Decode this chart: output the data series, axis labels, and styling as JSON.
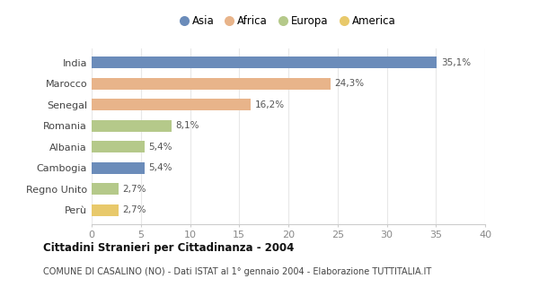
{
  "categories": [
    "India",
    "Marocco",
    "Senegal",
    "Romania",
    "Albania",
    "Cambogia",
    "Regno Unito",
    "Perù"
  ],
  "values": [
    35.1,
    24.3,
    16.2,
    8.1,
    5.4,
    5.4,
    2.7,
    2.7
  ],
  "labels": [
    "35,1%",
    "24,3%",
    "16,2%",
    "8,1%",
    "5,4%",
    "5,4%",
    "2,7%",
    "2,7%"
  ],
  "colors": [
    "#6b8cba",
    "#e8b48a",
    "#e8b48a",
    "#b5c98a",
    "#b5c98a",
    "#6b8cba",
    "#b5c98a",
    "#e8c96b"
  ],
  "legend_labels": [
    "Asia",
    "Africa",
    "Europa",
    "America"
  ],
  "legend_colors": [
    "#6b8cba",
    "#e8b48a",
    "#b5c98a",
    "#e8c96b"
  ],
  "title": "Cittadini Stranieri per Cittadinanza - 2004",
  "subtitle": "COMUNE DI CASALINO (NO) - Dati ISTAT al 1° gennaio 2004 - Elaborazione TUTTITALIA.IT",
  "xlim": [
    0,
    40
  ],
  "xticks": [
    0,
    5,
    10,
    15,
    20,
    25,
    30,
    35,
    40
  ],
  "background_color": "#ffffff",
  "grid_color": "#e8e8e8"
}
